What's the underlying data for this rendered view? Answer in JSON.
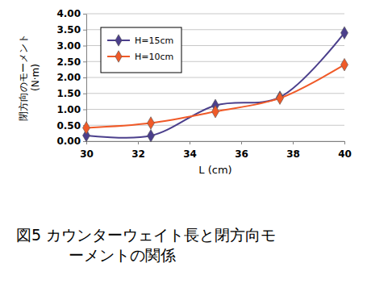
{
  "chart_data": {
    "type": "line",
    "title": "図5 カウンターウェイト長と閉方向モーメントの関係",
    "x_label": "L (cm)",
    "y_label": "閉方向のモーメント (N·m)",
    "x": [
      30,
      32.5,
      35,
      37.5,
      40
    ],
    "series": [
      {
        "name": "H=15cm",
        "color": "#4b3f8c",
        "marker": "diamond",
        "values": [
          0.18,
          0.17,
          1.12,
          1.38,
          3.4
        ]
      },
      {
        "name": "H=10cm",
        "color": "#f05a28",
        "marker": "diamond",
        "values": [
          0.42,
          0.57,
          0.93,
          1.35,
          2.4
        ]
      }
    ],
    "xlim": [
      30,
      40
    ],
    "xticks": [
      30,
      32,
      34,
      36,
      38,
      40
    ],
    "ylim": [
      0,
      4
    ],
    "yticks": [
      {
        "value": 0,
        "label": "0.00"
      },
      {
        "value": 0.5,
        "label": "0.50"
      },
      {
        "value": 1,
        "label": "1.00"
      },
      {
        "value": 1.5,
        "label": "1.50"
      },
      {
        "value": 2,
        "label": "2.00"
      },
      {
        "value": 2.5,
        "label": "2.50"
      },
      {
        "value": 3,
        "label": "3.00"
      },
      {
        "value": 3.5,
        "label": "3.50"
      },
      {
        "value": 4,
        "label": "4.00"
      }
    ],
    "grid": true,
    "legend": "upper left"
  }
}
